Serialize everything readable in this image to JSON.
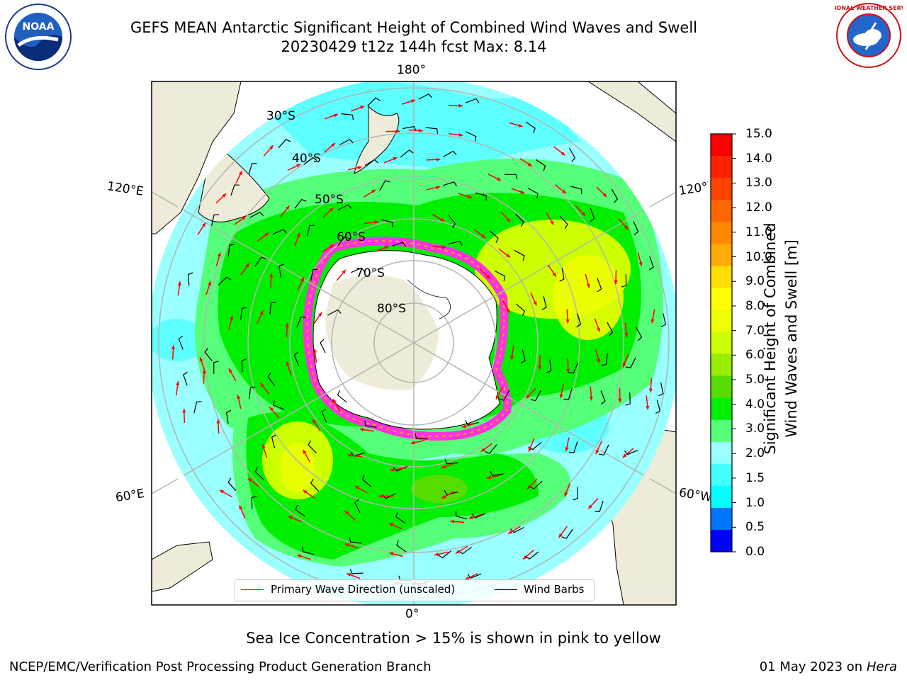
{
  "title": {
    "line1": "GEFS MEAN Antarctic Significant Height of Combined Wind Waves and Swell",
    "line2": "20230429 t12z 144h fcst   Max: 8.14"
  },
  "logos": {
    "left": "NOAA",
    "right": "NATIONAL WEATHER SERVICE"
  },
  "map": {
    "projection": "south-polar-stereographic",
    "lon_labels": {
      "top": "180°",
      "bottom": "0°",
      "upper_left": "120°E",
      "lower_left": "60°E",
      "upper_right": "120°W",
      "lower_right": "60°W"
    },
    "lat_labels": [
      "30°S",
      "40°S",
      "50°S",
      "60°S",
      "70°S",
      "80°S"
    ],
    "colors": {
      "land": "#eeecd8",
      "ice_sheet": "#ffffff",
      "sea_ice": "#ff33dd",
      "graticule": "#b4b4b4"
    }
  },
  "colorbar": {
    "label_line1": "Significant Height of Combined",
    "label_line2": "Wind Waves and Swell [m]",
    "ticks": [
      "15.0",
      "14.0",
      "13.0",
      "12.0",
      "11.0",
      "10.0",
      "9.0",
      "8.0",
      "7.0",
      "6.0",
      "5.0",
      "4.0",
      "3.0",
      "2.0",
      "1.5",
      "1.0",
      "0.5",
      "0.0"
    ],
    "colors_top_to_bottom": [
      "#ff0000",
      "#ff2200",
      "#ff4400",
      "#ff6600",
      "#ff8800",
      "#ffaa00",
      "#ffdd00",
      "#ffff00",
      "#eeff00",
      "#ccff00",
      "#99ee00",
      "#55dd00",
      "#00ee00",
      "#55ff77",
      "#99ffff",
      "#44ffff",
      "#00ffff",
      "#0077ff",
      "#0000ff"
    ]
  },
  "legend": {
    "item1": "Primary Wave Direction (unscaled)",
    "item2": "Wind Barbs",
    "item1_color": "#ff0000",
    "item2_color": "#000000"
  },
  "footer": {
    "note": "Sea Ice Concentration > 15% is shown in pink to yellow",
    "credit": "NCEP/EMC/Verification Post Processing Product Generation Branch",
    "date": "01 May 2023 on",
    "machine": "Hera"
  }
}
